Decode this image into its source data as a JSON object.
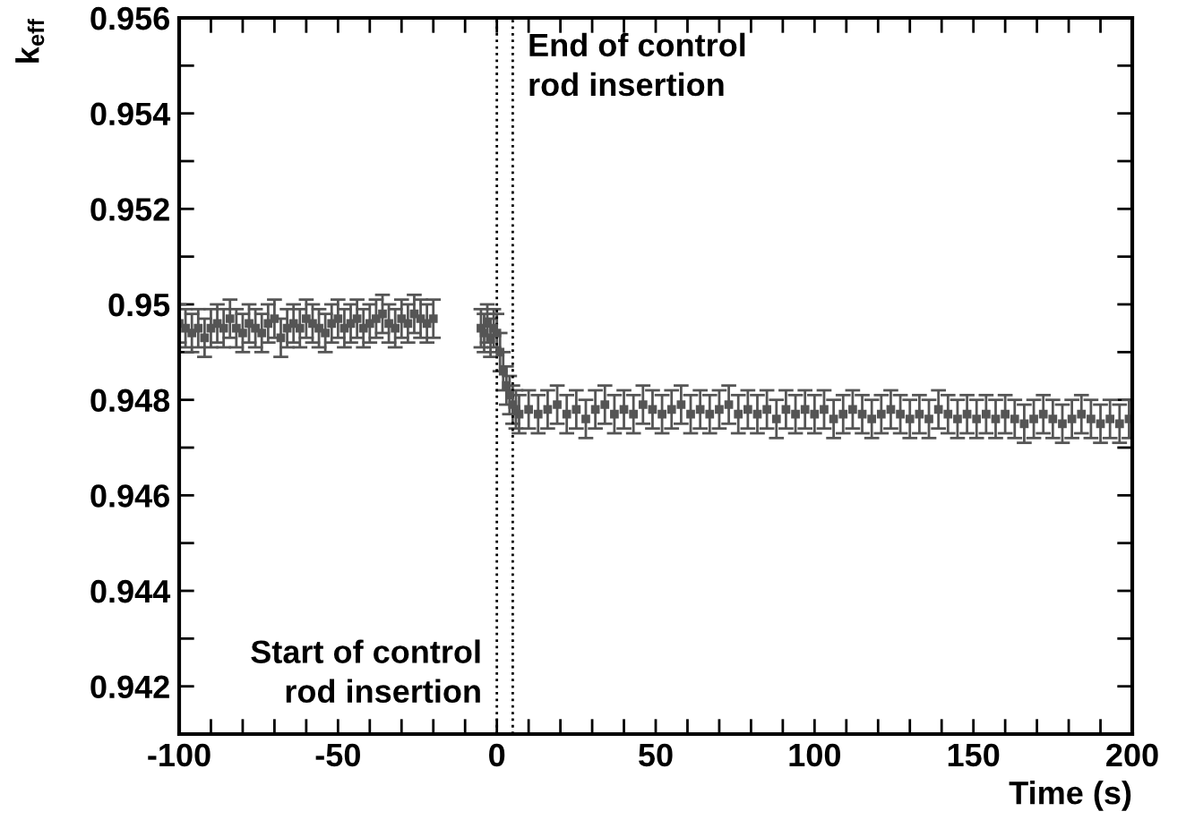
{
  "chart_data": {
    "type": "scatter",
    "xlabel": "Time (s)",
    "ylabel": "k$_{eff}$",
    "xlim": [
      -100,
      200
    ],
    "ylim": [
      0.941,
      0.956
    ],
    "xticks": [
      -100,
      {
        "value": -90,
        "label": null
      },
      {
        "value": -80,
        "label": null
      },
      {
        "value": -70,
        "label": null
      },
      {
        "value": -60,
        "label": null
      },
      -50,
      {
        "value": -40,
        "label": null
      },
      {
        "value": -30,
        "label": null
      },
      {
        "value": -20,
        "label": null
      },
      {
        "value": -10,
        "label": null
      },
      0,
      {
        "value": 10,
        "label": null
      },
      {
        "value": 20,
        "label": null
      },
      {
        "value": 30,
        "label": null
      },
      {
        "value": 40,
        "label": null
      },
      50,
      {
        "value": 60,
        "label": null
      },
      {
        "value": 70,
        "label": null
      },
      {
        "value": 80,
        "label": null
      },
      {
        "value": 90,
        "label": null
      },
      100,
      {
        "value": 110,
        "label": null
      },
      {
        "value": 120,
        "label": null
      },
      {
        "value": 130,
        "label": null
      },
      {
        "value": 140,
        "label": null
      },
      150,
      {
        "value": 160,
        "label": null
      },
      {
        "value": 170,
        "label": null
      },
      {
        "value": 180,
        "label": null
      },
      {
        "value": 190,
        "label": null
      },
      200
    ],
    "yticks": [
      {
        "value": 0.941,
        "label": null
      },
      0.942,
      {
        "value": 0.943,
        "label": null
      },
      0.944,
      {
        "value": 0.945,
        "label": null
      },
      0.946,
      {
        "value": 0.947,
        "label": null
      },
      0.948,
      {
        "value": 0.949,
        "label": null
      },
      0.95,
      {
        "value": 0.951,
        "label": null
      },
      0.952,
      {
        "value": 0.953,
        "label": null
      },
      0.954,
      {
        "value": 0.955,
        "label": null
      },
      0.956
    ],
    "grid": false,
    "marker": "square",
    "series": [
      {
        "color": "#555555",
        "x": [
          -100,
          -98,
          -96,
          -94,
          -92,
          -90,
          -88,
          -86,
          -84,
          -82,
          -80,
          -78,
          -76,
          -74,
          -72,
          -70,
          -68,
          -66,
          -64,
          -62,
          -60,
          -58,
          -56,
          -54,
          -52,
          -50,
          -48,
          -46,
          -44,
          -42,
          -40,
          -38,
          -36,
          -34,
          -32,
          -30,
          -28,
          -26,
          -24,
          -22,
          -20,
          -5,
          -4,
          -3,
          -2,
          -1,
          0,
          1,
          2,
          3,
          4,
          5,
          6,
          7,
          10,
          13,
          16,
          19,
          22,
          25,
          28,
          31,
          34,
          37,
          40,
          43,
          46,
          49,
          52,
          55,
          58,
          61,
          64,
          67,
          70,
          73,
          76,
          79,
          82,
          85,
          88,
          91,
          94,
          97,
          100,
          103,
          106,
          109,
          112,
          115,
          118,
          121,
          124,
          127,
          130,
          133,
          136,
          139,
          142,
          145,
          148,
          151,
          154,
          157,
          160,
          163,
          166,
          169,
          172,
          175,
          178,
          181,
          184,
          187,
          190,
          193,
          196,
          199
        ],
        "values": [
          0.9496,
          0.9495,
          0.9494,
          0.9495,
          0.9493,
          0.9495,
          0.9496,
          0.9495,
          0.9497,
          0.9495,
          0.9494,
          0.9496,
          0.9495,
          0.9494,
          0.9496,
          0.9497,
          0.9493,
          0.9495,
          0.9496,
          0.9495,
          0.9497,
          0.9496,
          0.9495,
          0.9494,
          0.9496,
          0.9497,
          0.9495,
          0.9496,
          0.9497,
          0.9495,
          0.9496,
          0.9497,
          0.9498,
          0.9496,
          0.9495,
          0.9497,
          0.9496,
          0.9498,
          0.9497,
          0.9496,
          0.9497,
          0.9495,
          0.9494,
          0.9496,
          0.9493,
          0.9495,
          0.9494,
          0.949,
          0.9486,
          0.9483,
          0.9481,
          0.9479,
          0.9478,
          0.9477,
          0.9478,
          0.9477,
          0.9478,
          0.9479,
          0.9477,
          0.9478,
          0.9476,
          0.9478,
          0.9479,
          0.9477,
          0.9478,
          0.9477,
          0.9479,
          0.9478,
          0.9477,
          0.9478,
          0.9479,
          0.9477,
          0.9478,
          0.9477,
          0.9478,
          0.9479,
          0.9477,
          0.9478,
          0.9477,
          0.9478,
          0.9476,
          0.9478,
          0.9477,
          0.9478,
          0.9477,
          0.9478,
          0.9476,
          0.9477,
          0.9478,
          0.9477,
          0.9476,
          0.9477,
          0.9478,
          0.9477,
          0.9476,
          0.9477,
          0.9476,
          0.9478,
          0.9477,
          0.9476,
          0.9477,
          0.9476,
          0.9477,
          0.9476,
          0.9477,
          0.9476,
          0.9475,
          0.9476,
          0.9477,
          0.9476,
          0.9475,
          0.9476,
          0.9477,
          0.9476,
          0.9475,
          0.9476,
          0.9475,
          0.9476
        ],
        "errors": [
          0.0004,
          0.0004,
          0.0004,
          0.0004,
          0.0004,
          0.0004,
          0.0004,
          0.0004,
          0.0004,
          0.0004,
          0.0004,
          0.0004,
          0.0004,
          0.0004,
          0.0004,
          0.0004,
          0.0004,
          0.0004,
          0.0004,
          0.0004,
          0.0004,
          0.0004,
          0.0004,
          0.0004,
          0.0004,
          0.0004,
          0.0004,
          0.0004,
          0.0004,
          0.0004,
          0.0004,
          0.0004,
          0.0004,
          0.0004,
          0.0004,
          0.0004,
          0.0004,
          0.0004,
          0.0004,
          0.0004,
          0.0004,
          0.0004,
          0.0004,
          0.0004,
          0.0004,
          0.0004,
          0.0004,
          0.0004,
          0.0004,
          0.0004,
          0.0004,
          0.0004,
          0.0004,
          0.0004,
          0.0004,
          0.0004,
          0.0004,
          0.0004,
          0.0004,
          0.0004,
          0.0004,
          0.0004,
          0.0004,
          0.0004,
          0.0004,
          0.0004,
          0.0004,
          0.0004,
          0.0004,
          0.0004,
          0.0004,
          0.0004,
          0.0004,
          0.0004,
          0.0004,
          0.0004,
          0.0004,
          0.0004,
          0.0004,
          0.0004,
          0.0004,
          0.0004,
          0.0004,
          0.0004,
          0.0004,
          0.0004,
          0.0004,
          0.0004,
          0.0004,
          0.0004,
          0.0004,
          0.0004,
          0.0004,
          0.0004,
          0.0004,
          0.0004,
          0.0004,
          0.0004,
          0.0004,
          0.0004,
          0.0004,
          0.0004,
          0.0004,
          0.0004,
          0.0004,
          0.0004,
          0.0004,
          0.0004,
          0.0004,
          0.0004,
          0.0004,
          0.0004,
          0.0004,
          0.0004,
          0.0004,
          0.0004,
          0.0004,
          0.0004
        ]
      }
    ],
    "ref_lines": [
      {
        "axis": "x",
        "value": 0,
        "label": "Start of control\nrod insertion",
        "color": "#000000",
        "line_style": "dotted"
      },
      {
        "axis": "x",
        "value": 5,
        "label": "End of control\nrod insertion",
        "color": "#000000",
        "line_style": "dotted"
      }
    ]
  }
}
